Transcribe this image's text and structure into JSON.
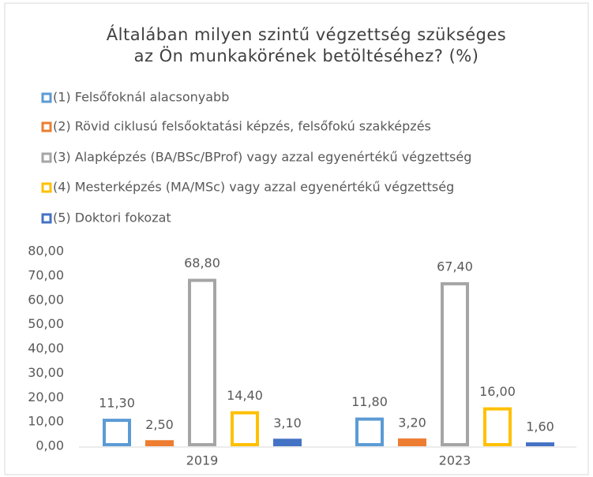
{
  "chart_data": {
    "type": "bar",
    "title": "Általában milyen szintű végzettség szükséges az Ön munkakörének betöltéséhez? (%)",
    "categories": [
      "2019",
      "2023"
    ],
    "series": [
      {
        "name": "(1) Felsőfoknál alacsonyabb",
        "color": "#5b9bd5",
        "values": [
          11.3,
          11.8
        ],
        "value_labels": [
          "11,30",
          "11,80"
        ]
      },
      {
        "name": "(2) Rövid ciklusú felsőoktatási képzés, felsőfokú szakképzés",
        "color": "#ed7d31",
        "values": [
          2.5,
          3.2
        ],
        "value_labels": [
          "2,50",
          "3,20"
        ]
      },
      {
        "name": "(3) Alapképzés (BA/BSc/BProf) vagy azzal egyenértékű végzettség",
        "color": "#a5a5a5",
        "values": [
          68.8,
          67.4
        ],
        "value_labels": [
          "68,80",
          "67,40"
        ]
      },
      {
        "name": "(4) Mesterképzés (MA/MSc) vagy azzal egyenértékű végzettség",
        "color": "#ffc000",
        "values": [
          14.4,
          16.0
        ],
        "value_labels": [
          "14,40",
          "16,00"
        ]
      },
      {
        "name": "(5) Doktori fokozat",
        "color": "#4472c4",
        "values": [
          3.1,
          1.6
        ],
        "value_labels": [
          "3,10",
          "1,60"
        ]
      }
    ],
    "ylim": [
      0,
      80
    ],
    "yticks": [
      {
        "value": 0,
        "label": "0,00"
      },
      {
        "value": 10,
        "label": "10,00"
      },
      {
        "value": 20,
        "label": "20,00"
      },
      {
        "value": 30,
        "label": "30,00"
      },
      {
        "value": 40,
        "label": "40,00"
      },
      {
        "value": 50,
        "label": "50,00"
      },
      {
        "value": 60,
        "label": "60,00"
      },
      {
        "value": 70,
        "label": "70,00"
      },
      {
        "value": 80,
        "label": "80,00"
      }
    ],
    "legend": "top"
  }
}
